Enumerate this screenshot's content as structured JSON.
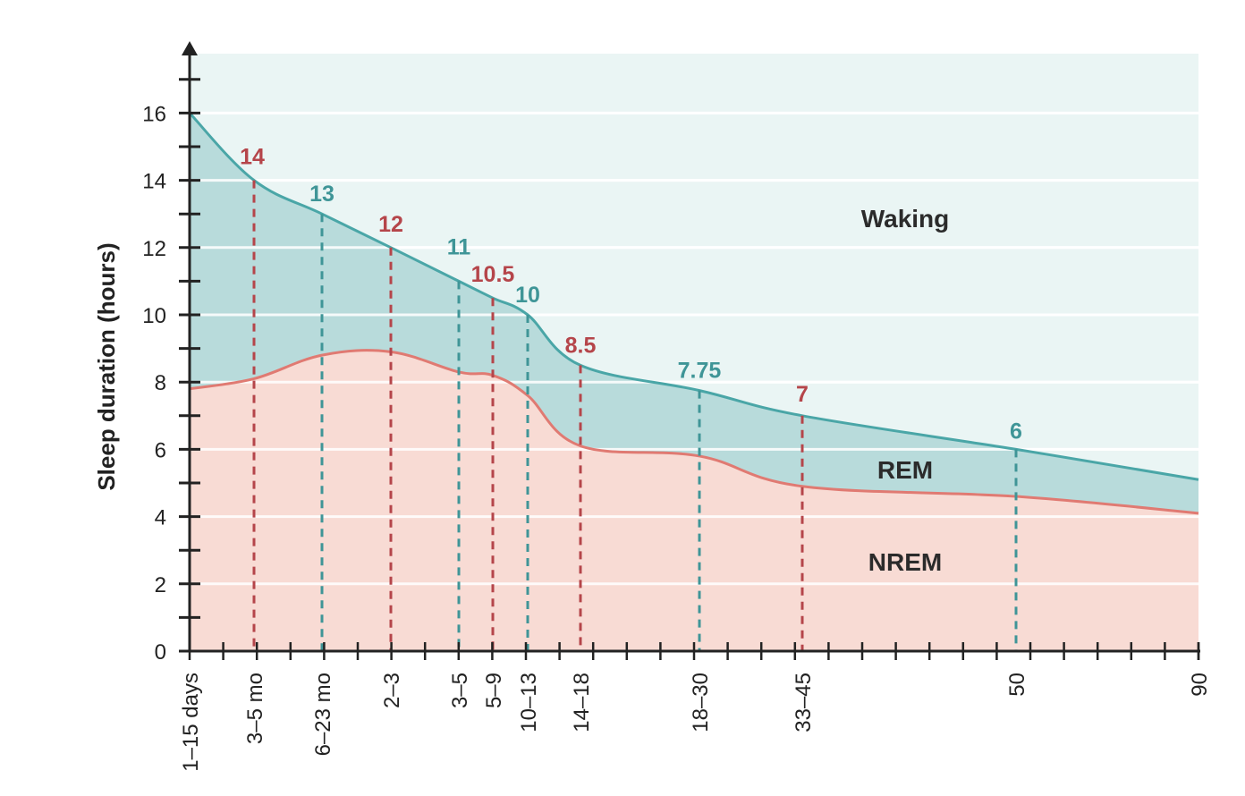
{
  "chart_data": {
    "type": "area",
    "title": "",
    "xlabel": "",
    "ylabel": "Sleep duration (hours)",
    "ylim": [
      0,
      18
    ],
    "yticks": [
      0,
      2,
      4,
      6,
      8,
      10,
      12,
      14,
      16
    ],
    "x_tick_labels": [
      "1–15 days",
      "3–5 mo",
      "6–23 mo",
      "2–3",
      "3–5",
      "5–9",
      "10–13",
      "14–18",
      "18–30",
      "33–45",
      "50",
      "90"
    ],
    "grid": true,
    "series": [
      {
        "name": "Waking",
        "description": "region above total sleep curve"
      },
      {
        "name": "REM",
        "description": "region between NREM curve and total sleep curve",
        "color": "#5fb0ad",
        "total_sleep_values": [
          16,
          14,
          13,
          12,
          11,
          10.5,
          10,
          8.5,
          7.75,
          7,
          6,
          5.1
        ]
      },
      {
        "name": "NREM",
        "color": "#e07a72",
        "values": [
          7.8,
          8.1,
          8.8,
          8.9,
          8.3,
          8.2,
          7.6,
          6.1,
          5.8,
          4.9,
          4.6,
          4.1
        ]
      }
    ],
    "annotations": [
      {
        "label": "14",
        "category": "3–5 mo",
        "value": 14,
        "color": "#b5454a"
      },
      {
        "label": "13",
        "category": "6–23 mo",
        "value": 13,
        "color": "#3f9597"
      },
      {
        "label": "12",
        "category": "2–3",
        "value": 12,
        "color": "#b5454a"
      },
      {
        "label": "11",
        "category": "3–5",
        "value": 11,
        "color": "#3f9597"
      },
      {
        "label": "10.5",
        "category": "5–9",
        "value": 10.5,
        "color": "#b5454a"
      },
      {
        "label": "10",
        "category": "10–13",
        "value": 10,
        "color": "#3f9597"
      },
      {
        "label": "8.5",
        "category": "14–18",
        "value": 8.5,
        "color": "#b5454a"
      },
      {
        "label": "7.75",
        "category": "18–30",
        "value": 7.75,
        "color": "#3f9597"
      },
      {
        "label": "7",
        "category": "33–45",
        "value": 7,
        "color": "#b5454a"
      },
      {
        "label": "6",
        "category": "50",
        "value": 6,
        "color": "#3f9597"
      }
    ],
    "region_labels": [
      "Waking",
      "REM",
      "NREM"
    ],
    "colors": {
      "waking_fill": "#eaf5f4",
      "rem_fill": "#b8dbdb",
      "rem_line": "#4aa6a7",
      "nrem_fill": "#f8dbd4",
      "nrem_line": "#e07a72",
      "grid": "#ffffff",
      "axis": "#222222"
    }
  }
}
